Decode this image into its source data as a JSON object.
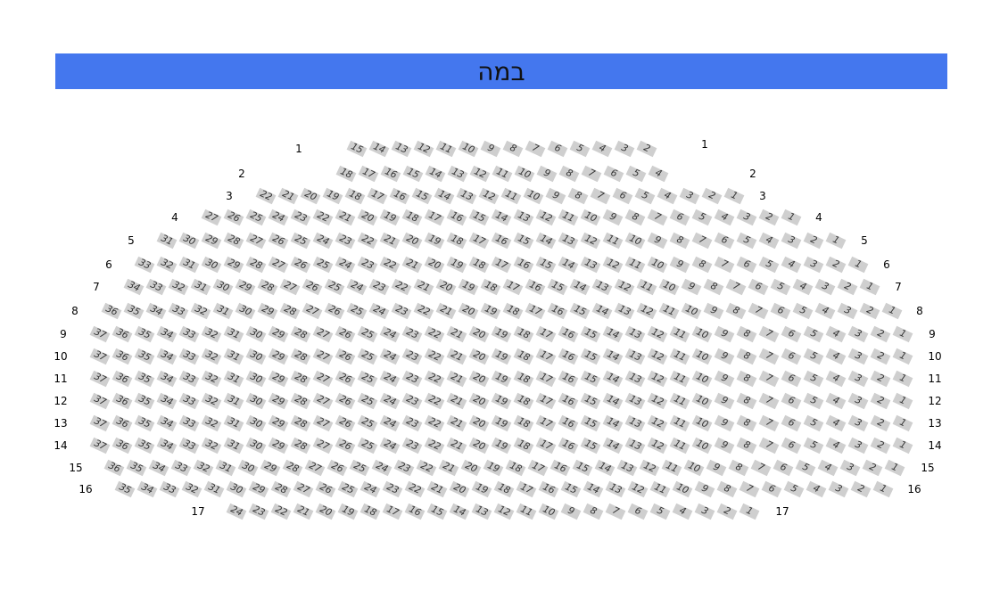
{
  "stage": {
    "label": "במה",
    "color": "#4477ee"
  },
  "seat_color": "#cfcfcf",
  "rows": [
    {
      "row": "1",
      "seats_from": 15,
      "seats_to": 2
    },
    {
      "row": "2",
      "seats_from": 18,
      "seats_to": 4
    },
    {
      "row": "3",
      "seats_from": 22,
      "seats_to": 1
    },
    {
      "row": "4",
      "seats_from": 27,
      "seats_to": 1
    },
    {
      "row": "5",
      "seats_from": 31,
      "seats_to": 1
    },
    {
      "row": "6",
      "seats_from": 33,
      "seats_to": 1
    },
    {
      "row": "7",
      "seats_from": 34,
      "seats_to": 1
    },
    {
      "row": "8",
      "seats_from": 36,
      "seats_to": 1
    },
    {
      "row": "9",
      "seats_from": 37,
      "seats_to": 1
    },
    {
      "row": "10",
      "seats_from": 37,
      "seats_to": 1
    },
    {
      "row": "11",
      "seats_from": 37,
      "seats_to": 1
    },
    {
      "row": "12",
      "seats_from": 37,
      "seats_to": 1
    },
    {
      "row": "13",
      "seats_from": 37,
      "seats_to": 1
    },
    {
      "row": "14",
      "seats_from": 37,
      "seats_to": 1
    },
    {
      "row": "15",
      "seats_from": 36,
      "seats_to": 1
    },
    {
      "row": "16",
      "seats_from": 35,
      "seats_to": 1
    },
    {
      "row": "17",
      "seats_from": 24,
      "seats_to": 1
    }
  ]
}
